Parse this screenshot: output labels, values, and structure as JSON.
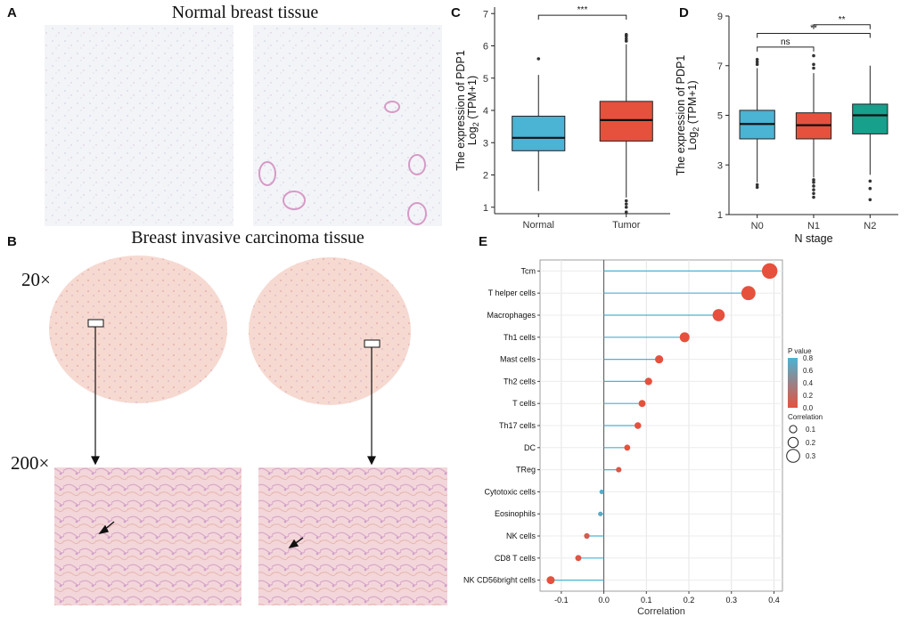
{
  "panels": {
    "A": {
      "letter": "A",
      "title": "Normal breast tissue"
    },
    "B": {
      "letter": "B",
      "title": "Breast invasive carcinoma tissue",
      "mag_low": "20×",
      "mag_high": "200×"
    },
    "C": {
      "letter": "C"
    },
    "D": {
      "letter": "D"
    },
    "E": {
      "letter": "E"
    }
  },
  "colors": {
    "normal_box": "#4bb3d3",
    "tumor_box": "#e5513d",
    "n2_box": "#17a08b",
    "lollipop_line": "#4bb3d3",
    "pvalue_high": "#4bb3d3",
    "pvalue_low": "#e5513d"
  },
  "chart_data": [
    {
      "id": "C",
      "type": "box",
      "ylabel_line1": "The expression of PDP1",
      "ylabel_log": "Log",
      "ylabel_sub": "2",
      "ylabel_rest": " (TPM+1)",
      "ylim": [
        0.8,
        7.2
      ],
      "yticks": [
        1,
        2,
        3,
        4,
        5,
        6,
        7
      ],
      "categories": [
        "Normal",
        "Tumor"
      ],
      "boxes": [
        {
          "name": "Normal",
          "whisker_low": 1.5,
          "q1": 2.75,
          "median": 3.15,
          "q3": 3.82,
          "whisker_high": 5.1,
          "outliers": [
            5.6
          ],
          "color_key": "normal_box"
        },
        {
          "name": "Tumor",
          "whisker_low": 1.3,
          "q1": 3.05,
          "median": 3.7,
          "q3": 4.28,
          "whisker_high": 6.05,
          "outliers": [
            6.15,
            6.22,
            6.3,
            6.35,
            1.2,
            1.1,
            1.0,
            0.85
          ],
          "color_key": "tumor_box"
        }
      ],
      "comparisons": [
        {
          "from": 0,
          "to": 1,
          "label": "***",
          "y": 6.95
        }
      ]
    },
    {
      "id": "D",
      "type": "box",
      "ylabel_line1": "The expression of PDP1",
      "ylabel_log": "Log",
      "ylabel_sub": "2",
      "ylabel_rest": " (TPM+1)",
      "xlabel": "N stage",
      "ylim": [
        1,
        9
      ],
      "yticks": [
        1,
        3,
        5,
        7,
        9
      ],
      "categories": [
        "N0",
        "N1",
        "N2"
      ],
      "boxes": [
        {
          "name": "N0",
          "whisker_low": 2.3,
          "q1": 4.05,
          "median": 4.65,
          "q3": 5.2,
          "whisker_high": 6.9,
          "outliers": [
            7.05,
            7.15,
            7.25,
            2.2,
            2.1
          ],
          "color_key": "normal_box"
        },
        {
          "name": "N1",
          "whisker_low": 2.5,
          "q1": 4.05,
          "median": 4.6,
          "q3": 5.1,
          "whisker_high": 6.7,
          "outliers": [
            6.9,
            7.05,
            7.4,
            2.4,
            2.3,
            2.15,
            2.0,
            1.85,
            1.7
          ],
          "color_key": "tumor_box"
        },
        {
          "name": "N2",
          "whisker_low": 2.6,
          "q1": 4.25,
          "median": 5.0,
          "q3": 5.45,
          "whisker_high": 7.0,
          "outliers": [
            2.35,
            2.05,
            1.6
          ],
          "color_key": "n2_box"
        }
      ],
      "comparisons": [
        {
          "from": 0,
          "to": 2,
          "label": "**",
          "y": 8.3
        },
        {
          "from": 0,
          "to": 1,
          "label": "ns",
          "y": 7.75
        },
        {
          "from": 1,
          "to": 2,
          "label": "**",
          "y": 8.65
        }
      ]
    },
    {
      "id": "E",
      "type": "lollipop",
      "xlabel": "Correlation",
      "xlim": [
        -0.15,
        0.42
      ],
      "xticks": [
        -0.1,
        0.0,
        0.1,
        0.2,
        0.3,
        0.4
      ],
      "xtick_labels": [
        "-0.1",
        "0.0",
        "0.1",
        "0.2",
        "0.3",
        "0.4"
      ],
      "categories": [
        "Tcm",
        "T helper cells",
        "Macrophages",
        "Th1 cells",
        "Mast cells",
        "Th2 cells",
        "T cells",
        "Th17 cells",
        "DC",
        "TReg",
        "Cytotoxic cells",
        "Eosinophils",
        "NK cells",
        "CD8 T cells",
        "NK CD56bright cells"
      ],
      "correlation": [
        0.39,
        0.34,
        0.27,
        0.19,
        0.13,
        0.105,
        0.09,
        0.08,
        0.055,
        0.035,
        -0.005,
        -0.008,
        -0.04,
        -0.06,
        -0.125
      ],
      "p_value": [
        0.0,
        0.0,
        0.0,
        0.0,
        0.0,
        0.0,
        0.0,
        0.0,
        0.0,
        0.05,
        0.75,
        0.7,
        0.1,
        0.05,
        0.0
      ],
      "legend": {
        "pvalue_title": "P value",
        "pvalue_ticks": [
          0.8,
          0.6,
          0.4,
          0.2,
          0.0
        ],
        "pvalue_tick_labels": [
          "0.8",
          "0.6",
          "0.4",
          "0.2",
          "0.0"
        ],
        "corr_title": "Correlation",
        "corr_sizes": [
          0.1,
          0.2,
          0.3
        ],
        "corr_size_labels": [
          "0.1",
          "0.2",
          "0.3"
        ]
      }
    }
  ]
}
